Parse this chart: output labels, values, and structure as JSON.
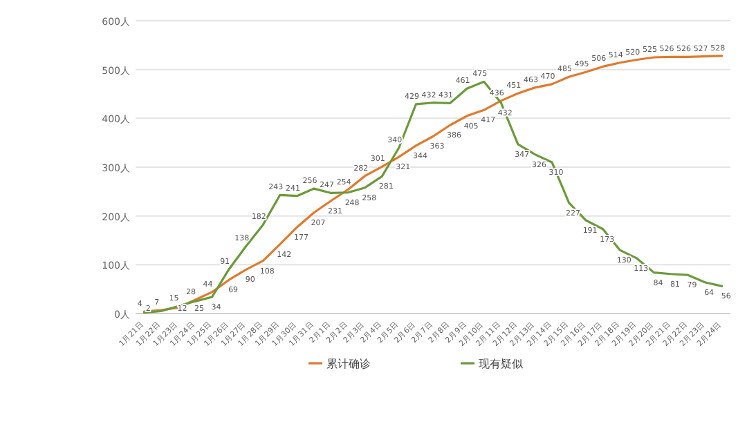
{
  "chart_data": {
    "type": "line",
    "categories": [
      "1月21日",
      "1月22日",
      "1月23日",
      "1月24日",
      "1月25日",
      "1月26日",
      "1月27日",
      "1月28日",
      "1月29日",
      "1月30日",
      "1月31日",
      "2月1日",
      "2月2日",
      "2月3日",
      "2月4日",
      "2月5日",
      "2月6日",
      "2月7日",
      "2月8日",
      "2月9日",
      "2月10日",
      "2月11日",
      "2月12日",
      "2月13日",
      "2月14日",
      "2月15日",
      "2月16日",
      "2月17日",
      "2月18日",
      "2月19日",
      "2月20日",
      "2月21日",
      "2月22日",
      "2月23日",
      "2月24日"
    ],
    "series": [
      {
        "name": "累计确诊",
        "color": "#e07a2e",
        "values": [
          4,
          7,
          12,
          28,
          44,
          69,
          90,
          108,
          142,
          177,
          207,
          231,
          254,
          282,
          301,
          321,
          344,
          363,
          386,
          405,
          417,
          436,
          451,
          463,
          470,
          485,
          495,
          506,
          514,
          520,
          525,
          526,
          526,
          527,
          528
        ],
        "value_labels": [
          "4",
          "7",
          "12",
          "28",
          "44",
          "69",
          "90",
          "108",
          "142",
          "177",
          "207",
          "231",
          "254",
          "282",
          "301",
          "321",
          "344",
          "363",
          "386",
          "405",
          "417",
          "436",
          "451",
          "463",
          "470",
          "485",
          "495",
          "506",
          "514",
          "520",
          "525",
          "526",
          "526",
          "527",
          "528"
        ]
      },
      {
        "name": "现有疑似",
        "color": "#6b9a3c",
        "values": [
          2,
          5,
          15,
          25,
          34,
          91,
          138,
          182,
          243,
          241,
          256,
          247,
          248,
          258,
          281,
          340,
          429,
          432,
          431,
          461,
          475,
          432,
          347,
          326,
          310,
          227,
          191,
          173,
          130,
          113,
          84,
          81,
          79,
          64,
          56
        ],
        "value_labels": [
          "2",
          null,
          "15",
          "25",
          "34",
          "91",
          "138",
          "182",
          "243",
          "241",
          "256",
          "247",
          "248",
          "258",
          "281",
          "340",
          "429",
          "432",
          "431",
          "461",
          "475",
          "432",
          "347",
          "326",
          "310",
          "227",
          "191",
          "173",
          "130",
          "113",
          "84",
          "81",
          "79",
          "64",
          "56"
        ]
      }
    ],
    "ylim": [
      0,
      600
    ],
    "yticks": [
      {
        "value": 0,
        "label": "0人"
      },
      {
        "value": 100,
        "label": "100人"
      },
      {
        "value": 200,
        "label": "200人"
      },
      {
        "value": 300,
        "label": "300人"
      },
      {
        "value": 400,
        "label": "400人"
      },
      {
        "value": 500,
        "label": "500人"
      },
      {
        "value": 600,
        "label": "600人"
      }
    ],
    "grid": "y",
    "legend": "bottom",
    "line_style": "solid",
    "marker": "none"
  }
}
